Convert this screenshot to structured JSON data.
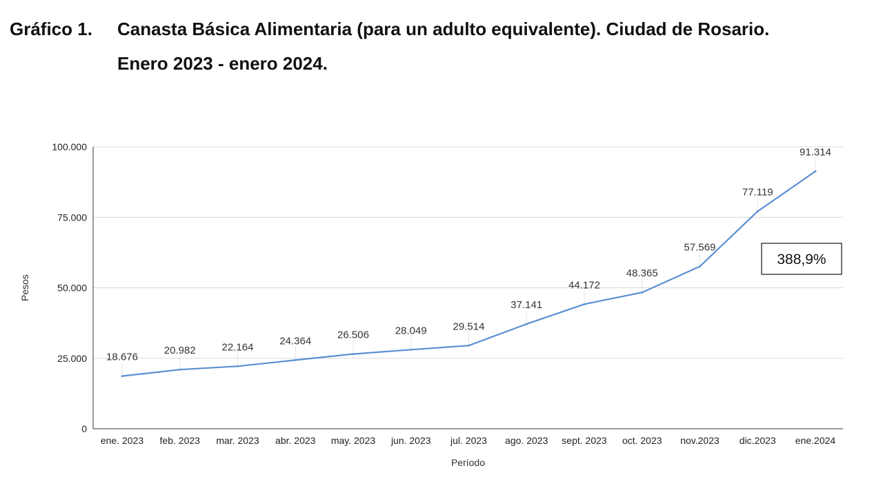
{
  "heading": {
    "label": "Gráfico 1.",
    "title_line1": "Canasta Básica Alimentaria (para un adulto equivalente). Ciudad de Rosario.",
    "title_line2": "Enero 2023 - enero 2024."
  },
  "chart_data": {
    "type": "line",
    "categories": [
      "ene. 2023",
      "feb. 2023",
      "mar. 2023",
      "abr. 2023",
      "may. 2023",
      "jun. 2023",
      "jul. 2023",
      "ago. 2023",
      "sept. 2023",
      "oct. 2023",
      "nov.2023",
      "dic.2023",
      "ene.2024"
    ],
    "values": [
      18676,
      20982,
      22164,
      24364,
      26506,
      28049,
      29514,
      37141,
      44172,
      48365,
      57569,
      77119,
      91314
    ],
    "value_labels": [
      "18.676",
      "20.982",
      "22.164",
      "24.364",
      "26.506",
      "28.049",
      "29.514",
      "37.141",
      "44.172",
      "48.365",
      "57.569",
      "77.119",
      "91.314"
    ],
    "yticks": [
      0,
      25000,
      50000,
      75000,
      100000
    ],
    "ytick_labels": [
      "0",
      "25.000",
      "50.000",
      "75.000",
      "100.000"
    ],
    "ylim": [
      0,
      100000
    ],
    "xlabel": "Período",
    "ylabel": "Pesos",
    "grid": true,
    "line_color": "#5b8fd3",
    "grid_color": "#d9d9d9",
    "annotation": "388,9%"
  }
}
